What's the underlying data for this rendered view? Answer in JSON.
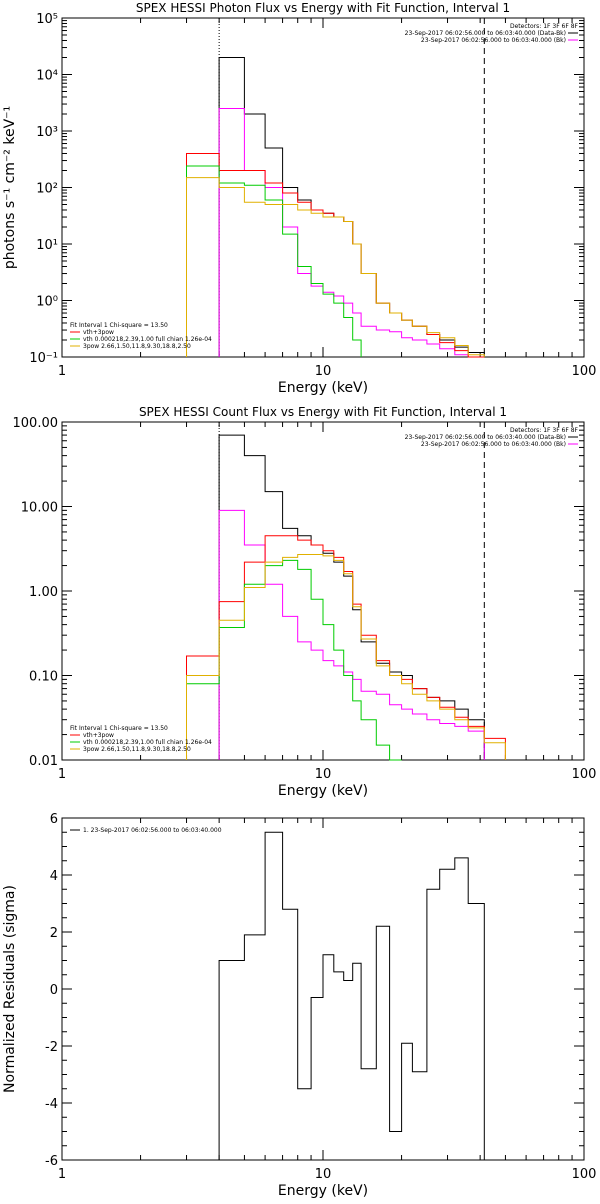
{
  "chart_data": [
    {
      "type": "line",
      "title": "SPEX HESSI Photon Flux vs Energy with Fit Function, Interval 1",
      "xlabel": "Energy (keV)",
      "ylabel": "photons s⁻¹ cm⁻² keV⁻¹",
      "xscale": "log",
      "yscale": "log",
      "xlim": [
        1,
        100
      ],
      "ylim": [
        0.1,
        100000
      ],
      "x_ticks": [
        {
          "v": 1,
          "label": "1"
        },
        {
          "v": 10,
          "label": "10"
        },
        {
          "v": 100,
          "label": "100"
        }
      ],
      "y_ticks": [
        {
          "v": 0.1,
          "label": "10⁻¹"
        },
        {
          "v": 1,
          "label": "10⁰"
        },
        {
          "v": 10,
          "label": "10¹"
        },
        {
          "v": 100,
          "label": "10²"
        },
        {
          "v": 1000,
          "label": "10³"
        },
        {
          "v": 10000,
          "label": "10⁴"
        },
        {
          "v": 100000,
          "label": "10⁵"
        }
      ],
      "vlines": [
        {
          "x": 4.0,
          "style": "dotted"
        },
        {
          "x": 41.5,
          "style": "dashed"
        }
      ],
      "legend_right": {
        "header": "Detectors: 1F 3F 6F 8F",
        "entries": [
          {
            "text": "23-Sep-2017 06:02:56.000 to 06:03:40.000 (Data-Bk)",
            "color": "#000000"
          },
          {
            "text": "23-Sep-2017 06:02:56.000 to 06:03:40.000 (Bk)",
            "color": "#ff00ff"
          }
        ]
      },
      "legend_left": {
        "header": "Fit Interval 1    Chi-square = 13.50",
        "entries": [
          {
            "text": "vth+3pow",
            "color": "#ff0000"
          },
          {
            "text": "vth 0.000218,2.39,1.00   full chian 1.26e-04",
            "color": "#00cc00"
          },
          {
            "text": "3pow 2.66,1.50,11.8,9.30,18.8,2.50",
            "color": "#e0b000"
          }
        ]
      },
      "bin_edges": [
        3.0,
        4.0,
        5.0,
        6.0,
        7.0,
        8.0,
        9.0,
        10.0,
        11.0,
        12.0,
        13.0,
        14.0,
        16.0,
        18.0,
        20.0,
        22.0,
        25.0,
        28.0,
        32.0,
        36.0,
        41.5
      ],
      "series": [
        {
          "color": "#000000",
          "values": [
            null,
            20000,
            2000,
            500,
            100,
            60,
            40,
            35,
            30,
            25,
            10,
            3,
            0.9,
            0.6,
            0.45,
            0.35,
            0.25,
            0.2,
            0.15,
            0.12
          ]
        },
        {
          "color": "#ff00ff",
          "values": [
            null,
            2500,
            200,
            100,
            20,
            3,
            1.8,
            1.4,
            1.2,
            0.9,
            0.6,
            0.35,
            0.3,
            0.28,
            0.22,
            0.2,
            0.17,
            0.14,
            0.11,
            null
          ]
        },
        {
          "color": "#ff0000",
          "values": [
            400,
            200,
            200,
            120,
            80,
            55,
            40,
            35,
            30,
            25,
            10,
            3,
            0.9,
            0.6,
            0.45,
            0.35,
            0.25,
            0.18,
            0.13,
            0.1
          ]
        },
        {
          "color": "#00cc00",
          "values": [
            240,
            120,
            110,
            60,
            15,
            4,
            2,
            1.3,
            0.9,
            0.5,
            0.2,
            null,
            null,
            null,
            null,
            null,
            null,
            null,
            null,
            null
          ]
        },
        {
          "color": "#e0b000",
          "values": [
            150,
            100,
            55,
            50,
            50,
            40,
            35,
            30,
            30,
            25,
            10,
            3,
            0.9,
            0.6,
            0.45,
            0.35,
            0.27,
            0.22,
            0.16,
            0.11
          ]
        }
      ]
    },
    {
      "type": "line",
      "title": "SPEX HESSI Count Flux vs Energy with Fit Function, Interval 1",
      "xlabel": "Energy (keV)",
      "ylabel": "",
      "xscale": "log",
      "yscale": "log",
      "xlim": [
        1,
        100
      ],
      "ylim": [
        0.01,
        100
      ],
      "x_ticks": [
        {
          "v": 1,
          "label": "1"
        },
        {
          "v": 10,
          "label": "10"
        },
        {
          "v": 100,
          "label": "100"
        }
      ],
      "y_ticks": [
        {
          "v": 0.01,
          "label": "0.01"
        },
        {
          "v": 0.1,
          "label": "0.10"
        },
        {
          "v": 1,
          "label": "1.00"
        },
        {
          "v": 10,
          "label": "10.00"
        },
        {
          "v": 100,
          "label": "100.00"
        }
      ],
      "vlines": [
        {
          "x": 4.0,
          "style": "dotted"
        },
        {
          "x": 41.5,
          "style": "dashed"
        }
      ],
      "legend_right": {
        "header": "Detectors: 1F 3F 6F 8F",
        "entries": [
          {
            "text": "23-Sep-2017 06:02:56.000 to 06:03:40.000 (Data-Bk)",
            "color": "#000000"
          },
          {
            "text": "23-Sep-2017 06:02:56.000 to 06:03:40.000 (Bk)",
            "color": "#ff00ff"
          }
        ]
      },
      "legend_left": {
        "header": "Fit Interval 1    Chi-square = 13.50",
        "entries": [
          {
            "text": "vth+3pow",
            "color": "#ff0000"
          },
          {
            "text": "vth 0.000218,2.39,1.00   full chian 1.26e-04",
            "color": "#00cc00"
          },
          {
            "text": "3pow 2.66,1.50,11.8,9.30,18.8,2.50",
            "color": "#e0b000"
          }
        ]
      },
      "bin_edges": [
        3.0,
        4.0,
        5.0,
        6.0,
        7.0,
        8.0,
        9.0,
        10.0,
        11.0,
        12.0,
        13.0,
        14.0,
        16.0,
        18.0,
        20.0,
        22.0,
        25.0,
        28.0,
        32.0,
        36.0,
        41.5,
        50.0
      ],
      "series": [
        {
          "color": "#000000",
          "values": [
            null,
            70,
            40,
            15,
            5.5,
            4.5,
            3.5,
            2.8,
            2.2,
            1.5,
            0.6,
            0.25,
            0.14,
            0.11,
            0.1,
            0.07,
            0.055,
            0.05,
            0.04,
            0.03,
            null
          ]
        },
        {
          "color": "#ff00ff",
          "values": [
            null,
            9,
            3.5,
            1.2,
            0.5,
            0.25,
            0.2,
            0.15,
            0.13,
            0.11,
            0.09,
            0.065,
            0.06,
            0.045,
            0.04,
            0.035,
            0.03,
            0.027,
            0.025,
            0.022,
            null
          ]
        },
        {
          "color": "#ff0000",
          "values": [
            0.17,
            0.75,
            2.2,
            4.5,
            4.5,
            4.0,
            3.5,
            3.0,
            2.5,
            1.7,
            0.7,
            0.3,
            0.15,
            0.1,
            0.09,
            0.07,
            0.055,
            0.042,
            0.032,
            0.025,
            0.018
          ]
        },
        {
          "color": "#00cc00",
          "values": [
            0.08,
            0.37,
            1.2,
            2.0,
            2.3,
            1.8,
            0.8,
            0.4,
            0.2,
            0.1,
            0.05,
            0.03,
            0.015,
            0.01,
            null,
            null,
            null,
            null,
            null,
            null,
            null
          ]
        },
        {
          "color": "#e0b000",
          "values": [
            0.1,
            0.45,
            1.1,
            2.2,
            2.5,
            2.7,
            2.7,
            2.6,
            2.3,
            1.6,
            0.65,
            0.27,
            0.13,
            0.1,
            0.08,
            0.06,
            0.05,
            0.04,
            0.03,
            0.024,
            0.016
          ]
        }
      ]
    },
    {
      "type": "line",
      "title": "",
      "xlabel": "Energy (keV)",
      "ylabel": "Normalized Residuals (sigma)",
      "xscale": "log",
      "yscale": "linear",
      "xlim": [
        1,
        100
      ],
      "ylim": [
        -6,
        6
      ],
      "x_ticks": [
        {
          "v": 1,
          "label": "1"
        },
        {
          "v": 10,
          "label": "10"
        },
        {
          "v": 100,
          "label": "100"
        }
      ],
      "y_ticks": [
        {
          "v": -6,
          "label": "-6"
        },
        {
          "v": -4,
          "label": "-4"
        },
        {
          "v": -2,
          "label": "-2"
        },
        {
          "v": 0,
          "label": "0"
        },
        {
          "v": 2,
          "label": "2"
        },
        {
          "v": 4,
          "label": "4"
        },
        {
          "v": 6,
          "label": "6"
        }
      ],
      "legend_left": {
        "header": "",
        "entries": [
          {
            "text": "1. 23-Sep-2017 06:02:56.000 to 06:03:40.000",
            "color": "#000000"
          }
        ]
      },
      "bin_edges": [
        4.0,
        5.0,
        6.0,
        7.0,
        8.0,
        9.0,
        10.0,
        11.0,
        12.0,
        13.0,
        14.0,
        16.0,
        18.0,
        20.0,
        22.0,
        25.0,
        28.0,
        32.0,
        36.0,
        41.5
      ],
      "series": [
        {
          "color": "#000000",
          "values": [
            1.0,
            1.9,
            5.5,
            2.8,
            -3.5,
            -0.3,
            1.2,
            0.6,
            0.3,
            0.9,
            -2.8,
            2.2,
            -5.0,
            -1.9,
            -2.9,
            3.5,
            4.2,
            4.6,
            3.0
          ]
        }
      ]
    }
  ]
}
